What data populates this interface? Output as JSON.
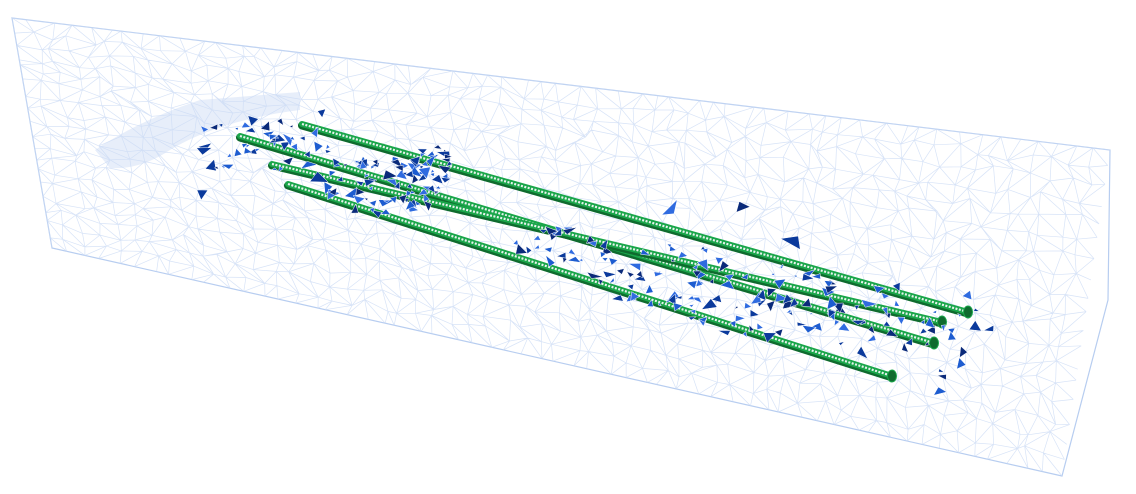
{
  "scene": {
    "mesh_color": "#c9daf4",
    "mesh_edge_color": "#b7cdf0",
    "rebar_color": "#1aa64a",
    "rebar_dark_color": "#0f6b2e",
    "rebar_core_color": "#e8f3ee",
    "fragment_colors": [
      "#0b3a9c",
      "#1d5cd0",
      "#0a2a7a",
      "#2f6be0"
    ],
    "rebar_count": 4,
    "background": "#ffffff"
  }
}
